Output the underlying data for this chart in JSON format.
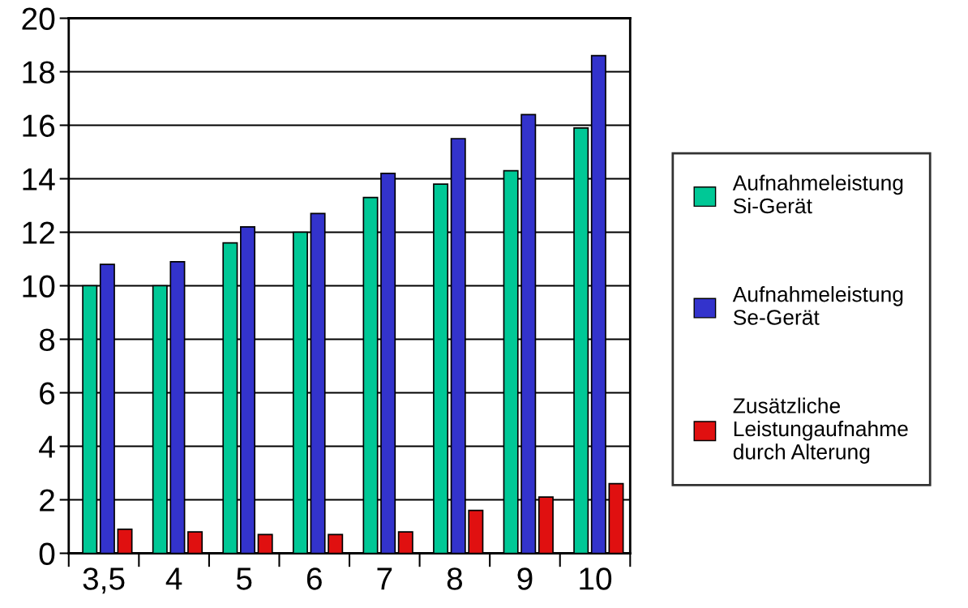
{
  "chart_data": {
    "type": "bar",
    "categories": [
      "3,5",
      "4",
      "5",
      "6",
      "7",
      "8",
      "9",
      "10"
    ],
    "series": [
      {
        "name": "Aufnahmeleistung\nSi-Gerät",
        "color": "#00c896",
        "values": [
          10.0,
          10.0,
          11.6,
          12.0,
          13.3,
          13.8,
          14.3,
          15.9
        ]
      },
      {
        "name": "Aufnahmeleistung\nSe-Gerät",
        "color": "#3333cc",
        "values": [
          10.8,
          10.9,
          12.2,
          12.7,
          14.2,
          15.5,
          16.4,
          18.6
        ]
      },
      {
        "name": "Zusätzliche\nLeistungaufnahme\ndurch Alterung",
        "color": "#e01010",
        "values": [
          0.9,
          0.8,
          0.7,
          0.7,
          0.8,
          1.6,
          2.1,
          2.6
        ]
      }
    ],
    "ylim": [
      0,
      20
    ],
    "yticks": [
      0,
      2,
      4,
      6,
      8,
      10,
      12,
      14,
      16,
      18,
      20
    ],
    "grid": "y",
    "legend": "right"
  }
}
